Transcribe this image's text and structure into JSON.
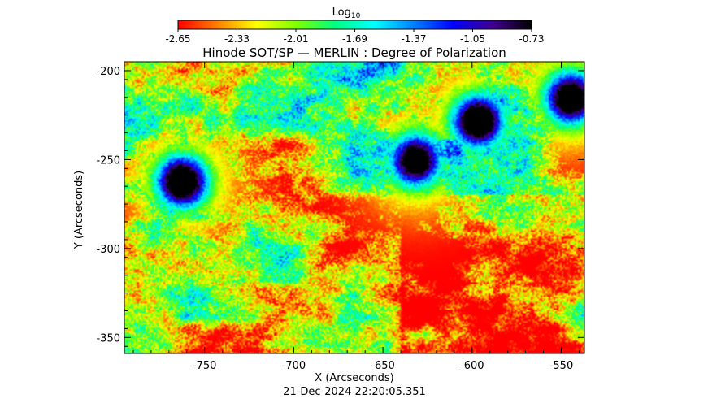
{
  "colorbar": {
    "label_main": "Log",
    "label_sub": "10",
    "ticks": [
      "-2.65",
      "-2.33",
      "-2.01",
      "-1.69",
      "-1.37",
      "-1.05",
      "-0.73"
    ],
    "range": [
      -2.65,
      -0.73
    ],
    "colormap": [
      "#ff0000",
      "#ff8000",
      "#ffff00",
      "#80ff00",
      "#00ff80",
      "#00ffff",
      "#0080ff",
      "#0000ff",
      "#400090",
      "#000000"
    ]
  },
  "chart_data": {
    "type": "heatmap",
    "title": "Hinode SOT/SP — MERLIN : Degree of Polarization",
    "xlabel": "X (Arcseconds)",
    "ylabel": "Y (Arcseconds)",
    "xlim": [
      -795,
      -537
    ],
    "ylim": [
      -359,
      -195
    ],
    "xticks": [
      {
        "value": -750,
        "label": "-750"
      },
      {
        "value": -700,
        "label": "-700"
      },
      {
        "value": -650,
        "label": "-650"
      },
      {
        "value": -600,
        "label": "-600"
      },
      {
        "value": -550,
        "label": "-550"
      }
    ],
    "yticks": [
      {
        "value": -200,
        "label": "-200"
      },
      {
        "value": -250,
        "label": "-250"
      },
      {
        "value": -300,
        "label": "-300"
      },
      {
        "value": -350,
        "label": "-350"
      }
    ],
    "regions_high_polarization": [
      {
        "x": -763,
        "y": -262,
        "level": -0.8
      },
      {
        "x": -597,
        "y": -228,
        "level": -0.8
      },
      {
        "x": -632,
        "y": -250,
        "level": -1.0
      },
      {
        "x": -545,
        "y": -215,
        "level": -0.9
      }
    ],
    "timestamp": "21-Dec-2024 22:20:05.351"
  }
}
